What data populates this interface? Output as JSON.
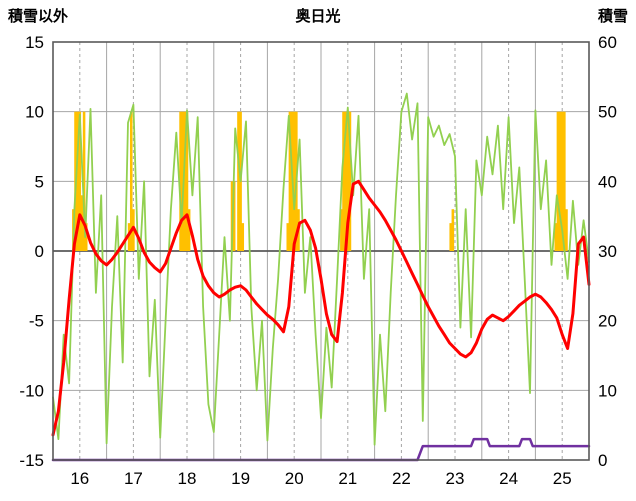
{
  "header": {
    "left_axis_title": "積雪以外",
    "title": "奥日光",
    "right_axis_title": "積雪"
  },
  "chart_data": {
    "type": "combo",
    "title": "奥日光",
    "legend": "none",
    "grid": "on",
    "colors": {
      "grid": "#A6A6A6",
      "border": "#595959",
      "zero_line": "#595959",
      "text": "#000000",
      "bar": "#FFC000",
      "green_line": "#92D050",
      "temperature_line": "#FF0000",
      "snow_depth_line": "#7030A0"
    },
    "left_axis": {
      "title": "積雪以外",
      "min": -15,
      "max": 15,
      "ticks": [
        15,
        10,
        5,
        0,
        -5,
        -10,
        -15
      ]
    },
    "right_axis": {
      "title": "積雪",
      "min": 0,
      "max": 60,
      "ticks": [
        60,
        50,
        40,
        30,
        20,
        10,
        0
      ]
    },
    "x_axis": {
      "min": 15.5,
      "max": 25.5,
      "tick_positions": [
        16,
        17,
        18,
        19,
        20,
        21,
        22,
        23,
        24,
        25
      ],
      "tick_labels": [
        "16",
        "17",
        "18",
        "19",
        "20",
        "21",
        "22",
        "23",
        "24",
        "25"
      ]
    },
    "series": [
      {
        "name": "sunshine",
        "type": "bar",
        "axis": "left",
        "color": "#FFC000",
        "baseline": 0,
        "bar_width_days": 0.048,
        "points": [
          [
            15.88,
            3
          ],
          [
            15.92,
            10
          ],
          [
            15.96,
            10
          ],
          [
            16.0,
            10
          ],
          [
            16.04,
            4
          ],
          [
            16.08,
            10
          ],
          [
            16.12,
            2
          ],
          [
            16.92,
            2
          ],
          [
            16.96,
            10
          ],
          [
            17.0,
            3
          ],
          [
            17.88,
            10
          ],
          [
            17.92,
            10
          ],
          [
            17.96,
            10
          ],
          [
            18.0,
            10
          ],
          [
            18.04,
            3
          ],
          [
            18.84,
            5
          ],
          [
            18.88,
            5
          ],
          [
            18.96,
            10
          ],
          [
            19.0,
            10
          ],
          [
            19.04,
            2
          ],
          [
            19.88,
            2
          ],
          [
            19.92,
            10
          ],
          [
            19.96,
            10
          ],
          [
            20.0,
            10
          ],
          [
            20.04,
            10
          ],
          [
            20.08,
            3
          ],
          [
            20.88,
            3
          ],
          [
            20.92,
            10
          ],
          [
            20.96,
            10
          ],
          [
            21.0,
            10
          ],
          [
            21.04,
            10
          ],
          [
            22.92,
            2
          ],
          [
            22.96,
            3
          ],
          [
            24.88,
            2
          ],
          [
            24.92,
            10
          ],
          [
            24.96,
            10
          ],
          [
            25.0,
            10
          ],
          [
            25.04,
            10
          ],
          [
            25.08,
            3
          ]
        ]
      },
      {
        "name": "green",
        "type": "line",
        "axis": "left",
        "color": "#92D050",
        "width": 1.8,
        "x_start": 15.5,
        "x_step": 0.1,
        "values": [
          -10.5,
          -13.5,
          -6.0,
          -9.5,
          3.0,
          9.8,
          1.0,
          10.2,
          -3.0,
          4.0,
          -13.8,
          -4.0,
          2.5,
          -8.0,
          9.2,
          10.5,
          -2.0,
          5.0,
          -9.0,
          -3.5,
          -13.4,
          -5.0,
          3.0,
          8.5,
          2.0,
          10.1,
          4.0,
          9.6,
          -4.0,
          -11.0,
          -13.0,
          -6.0,
          1.0,
          -5.0,
          8.8,
          5.0,
          9.3,
          -4.0,
          -10.0,
          -5.0,
          -13.6,
          -7.0,
          -2.0,
          4.5,
          9.7,
          3.0,
          8.0,
          -3.0,
          1.0,
          -6.0,
          -12.0,
          -5.5,
          -9.8,
          -2.0,
          6.0,
          10.3,
          4.0,
          9.7,
          -2.0,
          3.0,
          -13.9,
          -6.0,
          -11.5,
          -3.0,
          4.0,
          10.0,
          11.3,
          8.0,
          10.6,
          -12.2,
          9.6,
          8.2,
          9.0,
          7.6,
          8.4,
          6.8,
          -5.5,
          3.0,
          -6.2,
          6.5,
          4.0,
          8.2,
          5.5,
          9.0,
          3.0,
          9.6,
          2.0,
          6.0,
          -2.0,
          -10.2,
          10.1,
          3.0,
          6.5,
          -1.0,
          4.0,
          1.5,
          -2.0,
          3.6,
          -1.0,
          2.2,
          -0.8
        ]
      },
      {
        "name": "temperature",
        "type": "line",
        "axis": "left",
        "color": "#FF0000",
        "width": 3,
        "x_start": 15.5,
        "x_step": 0.1,
        "values": [
          -13.2,
          -11.5,
          -8.0,
          -3.5,
          0.5,
          2.6,
          1.8,
          0.6,
          -0.2,
          -0.7,
          -1.0,
          -0.6,
          -0.1,
          0.5,
          1.1,
          1.7,
          0.9,
          -0.1,
          -0.8,
          -1.2,
          -1.5,
          -0.9,
          0.2,
          1.3,
          2.2,
          2.6,
          1.1,
          -0.6,
          -1.8,
          -2.5,
          -3.0,
          -3.3,
          -3.1,
          -2.8,
          -2.6,
          -2.5,
          -2.8,
          -3.3,
          -3.8,
          -4.2,
          -4.6,
          -4.9,
          -5.3,
          -5.8,
          -4.0,
          0.5,
          2.0,
          2.2,
          1.5,
          0.2,
          -2.0,
          -4.5,
          -6.0,
          -6.5,
          -3.0,
          2.0,
          4.8,
          5.0,
          4.4,
          3.8,
          3.3,
          2.8,
          2.2,
          1.5,
          0.8,
          0.0,
          -0.8,
          -1.6,
          -2.4,
          -3.2,
          -4.0,
          -4.7,
          -5.4,
          -6.0,
          -6.6,
          -7.0,
          -7.4,
          -7.6,
          -7.3,
          -6.6,
          -5.6,
          -4.9,
          -4.6,
          -4.8,
          -5.0,
          -4.7,
          -4.3,
          -3.9,
          -3.6,
          -3.3,
          -3.1,
          -3.3,
          -3.7,
          -4.2,
          -4.8,
          -6.0,
          -7.0,
          -4.5,
          0.5,
          1.0,
          -2.4
        ]
      },
      {
        "name": "snow_depth",
        "type": "line",
        "axis": "right",
        "color": "#7030A0",
        "width": 2.5,
        "points": [
          [
            15.5,
            0
          ],
          [
            22.3,
            0
          ],
          [
            22.4,
            2
          ],
          [
            23.3,
            2
          ],
          [
            23.35,
            3
          ],
          [
            23.6,
            3
          ],
          [
            23.65,
            2
          ],
          [
            24.2,
            2
          ],
          [
            24.25,
            3
          ],
          [
            24.4,
            3
          ],
          [
            24.45,
            2
          ],
          [
            25.5,
            2
          ]
        ]
      }
    ]
  }
}
